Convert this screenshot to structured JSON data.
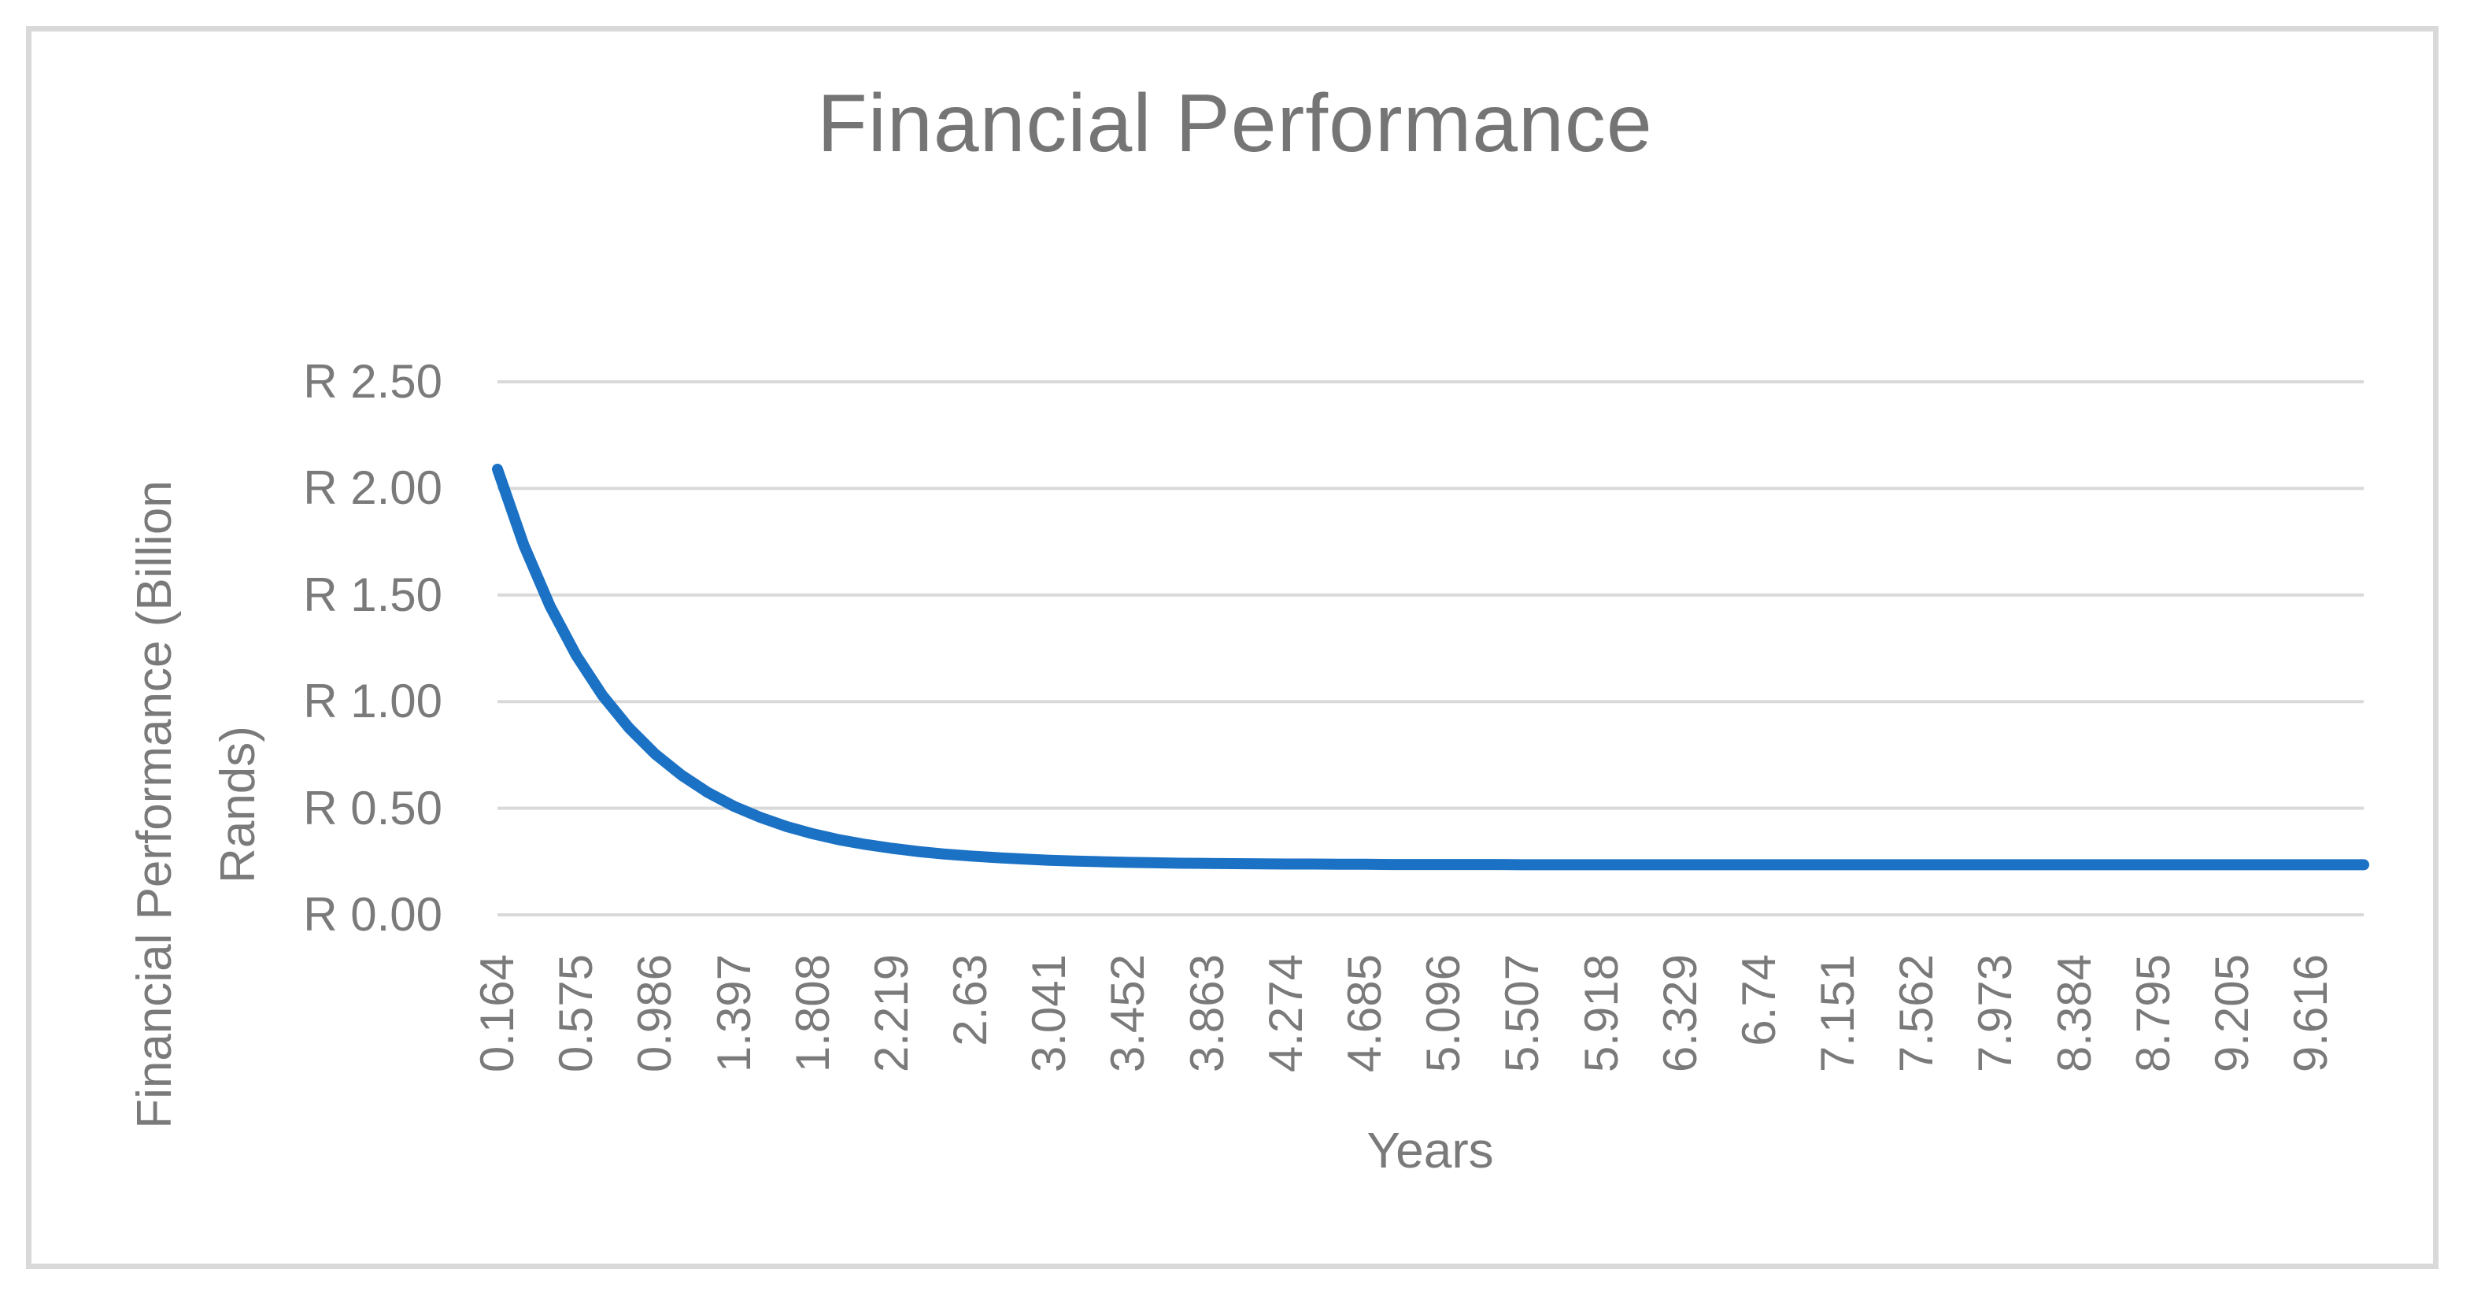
{
  "chart": {
    "title": "Financial Performance",
    "x_axis_title": "Years",
    "y_axis_title_line1": "Financial Performance (Billion",
    "y_axis_title_line2": "Rands)",
    "colors": {
      "series_line": "#1B72C4",
      "gridline": "#D9D9D9",
      "frame_border": "#D9D9D9",
      "title_text": "#757575",
      "axis_text": "#7A7A7A",
      "background": "#FFFFFF"
    }
  },
  "chart_data": {
    "type": "line",
    "title": "Financial Performance",
    "xlabel": "Years",
    "ylabel": "Financial Performance (Billion Rands)",
    "legend": "none",
    "grid": "horizontal",
    "ylim": [
      0,
      2.5
    ],
    "y_ticks": [
      {
        "label": "R 0.00",
        "value": 0.0
      },
      {
        "label": "R 0.50",
        "value": 0.5
      },
      {
        "label": "R 1.00",
        "value": 1.0
      },
      {
        "label": "R 1.50",
        "value": 1.5
      },
      {
        "label": "R 2.00",
        "value": 2.0
      },
      {
        "label": "R 2.50",
        "value": 2.5
      }
    ],
    "x_tick_labels": [
      "0.164",
      "0.575",
      "0.986",
      "1.397",
      "1.808",
      "2.219",
      "2.63",
      "3.041",
      "3.452",
      "3.863",
      "4.274",
      "4.685",
      "5.096",
      "5.507",
      "5.918",
      "6.329",
      "6.74",
      "7.151",
      "7.562",
      "7.973",
      "8.384",
      "8.795",
      "9.205",
      "9.616"
    ],
    "x_tick_every": 3,
    "x": [
      0.164,
      0.301,
      0.438,
      0.575,
      0.712,
      0.849,
      0.986,
      1.123,
      1.26,
      1.397,
      1.534,
      1.671,
      1.808,
      1.945,
      2.082,
      2.219,
      2.356,
      2.493,
      2.63,
      2.767,
      2.904,
      3.041,
      3.178,
      3.315,
      3.452,
      3.589,
      3.726,
      3.863,
      4.0,
      4.137,
      4.274,
      4.411,
      4.548,
      4.685,
      4.822,
      4.959,
      5.096,
      5.233,
      5.37,
      5.507,
      5.644,
      5.781,
      5.918,
      6.055,
      6.192,
      6.329,
      6.466,
      6.603,
      6.74,
      6.877,
      7.014,
      7.151,
      7.288,
      7.425,
      7.562,
      7.699,
      7.836,
      7.973,
      8.11,
      8.247,
      8.384,
      8.521,
      8.658,
      8.795,
      8.932,
      9.069,
      9.205,
      9.342,
      9.479,
      9.616,
      9.753,
      9.89
    ],
    "values": [
      2.09,
      1.735,
      1.448,
      1.216,
      1.028,
      0.877,
      0.754,
      0.655,
      0.574,
      0.509,
      0.457,
      0.414,
      0.38,
      0.352,
      0.33,
      0.312,
      0.297,
      0.285,
      0.276,
      0.268,
      0.262,
      0.256,
      0.252,
      0.249,
      0.246,
      0.244,
      0.242,
      0.241,
      0.24,
      0.239,
      0.238,
      0.238,
      0.237,
      0.237,
      0.236,
      0.236,
      0.236,
      0.236,
      0.236,
      0.235,
      0.235,
      0.235,
      0.235,
      0.235,
      0.235,
      0.235,
      0.235,
      0.235,
      0.235,
      0.235,
      0.235,
      0.235,
      0.235,
      0.235,
      0.235,
      0.235,
      0.235,
      0.235,
      0.235,
      0.235,
      0.235,
      0.235,
      0.235,
      0.235,
      0.235,
      0.235,
      0.235,
      0.235,
      0.235,
      0.235,
      0.235,
      0.235
    ]
  }
}
